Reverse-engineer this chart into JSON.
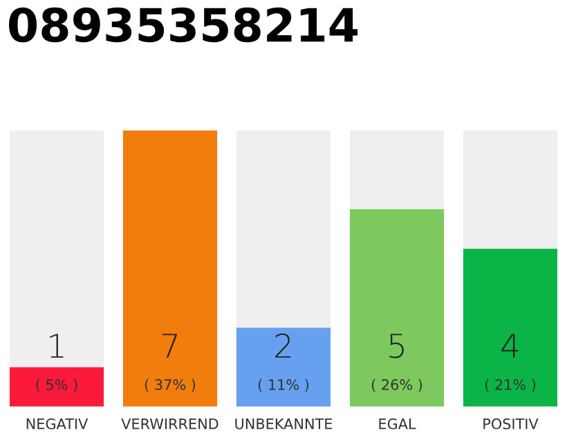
{
  "chart_data": {
    "type": "bar",
    "title": "08935358214",
    "categories": [
      "NEGATIV",
      "VERWIRREND",
      "UNBEKANNTE",
      "EGAL",
      "POSITIV"
    ],
    "values": [
      1,
      7,
      2,
      5,
      4
    ],
    "colors": [
      "#fc1a3b",
      "#f07d0c",
      "#67a0ee",
      "#7ec95d",
      "#0bb446"
    ],
    "value_labels": [
      "1\n( 5% )",
      "7\n( 37% )",
      "2\n( 11% )",
      "5\n( 26% )",
      "4\n( 21% )"
    ],
    "ylim": [
      0,
      7
    ],
    "tick_labels": "x",
    "grid": false,
    "legend": false
  }
}
